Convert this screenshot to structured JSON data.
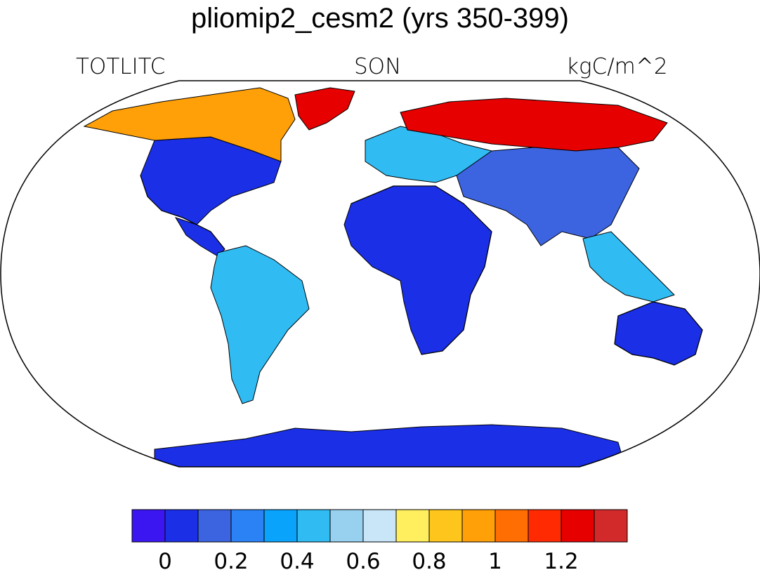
{
  "title": "pliomip2_cesm2 (yrs 350-399)",
  "left_label": "TOTLITC",
  "center_label": "SON",
  "right_label": "kgC/m^2",
  "map_projection": "robinson",
  "colorbar": {
    "colors": [
      "#3c16f0",
      "#1a2fe6",
      "#3c64e0",
      "#2a82f5",
      "#0aa3fb",
      "#30bcf3",
      "#98d1f0",
      "#c8e6f8",
      "#ffee5e",
      "#fec61c",
      "#ffa008",
      "#ff6e02",
      "#ff2a02",
      "#e60000",
      "#d22a2a"
    ],
    "tick_labels": [
      "0",
      "0.2",
      "0.4",
      "0.6",
      "0.8",
      "1",
      "1.2"
    ]
  },
  "land_regions": [
    {
      "name": "north-america-south",
      "color": "#1a2fe6"
    },
    {
      "name": "north-america-north",
      "color": "#ffa008"
    },
    {
      "name": "greenland",
      "color": "#e60000"
    },
    {
      "name": "central-america",
      "color": "#1a2fe6"
    },
    {
      "name": "south-america",
      "color": "#30bcf3"
    },
    {
      "name": "africa",
      "color": "#1a2fe6"
    },
    {
      "name": "europe",
      "color": "#30bcf3"
    },
    {
      "name": "siberia",
      "color": "#e60000"
    },
    {
      "name": "asia",
      "color": "#3c64e0"
    },
    {
      "name": "southeast-asia",
      "color": "#30bcf3"
    },
    {
      "name": "australia",
      "color": "#1a2fe6"
    },
    {
      "name": "antarctica",
      "color": "#1a2fe6"
    }
  ]
}
